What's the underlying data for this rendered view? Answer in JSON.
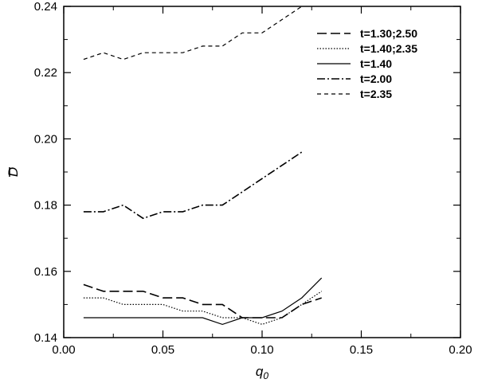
{
  "chart_data": {
    "type": "line",
    "title": "",
    "xlabel": "q",
    "xlabel_sub": "0",
    "ylabel": "D",
    "xlim": [
      0.0,
      0.2
    ],
    "ylim": [
      0.14,
      0.24
    ],
    "xticks": [
      0.0,
      0.05,
      0.1,
      0.15,
      0.2
    ],
    "xtick_labels": [
      "0.00",
      "0.05",
      "0.10",
      "0.15",
      "0.20"
    ],
    "yticks": [
      0.14,
      0.16,
      0.18,
      0.2,
      0.22,
      0.24
    ],
    "ytick_labels": [
      "0.14",
      "0.16",
      "0.18",
      "0.20",
      "0.22",
      "0.24"
    ],
    "grid": false,
    "legend_position": "top-right",
    "series": [
      {
        "name": "t=1.30;2.50",
        "dash": "long-dash",
        "x": [
          0.01,
          0.02,
          0.03,
          0.04,
          0.05,
          0.06,
          0.07,
          0.08,
          0.09,
          0.1,
          0.11,
          0.12,
          0.13
        ],
        "y": [
          0.156,
          0.154,
          0.154,
          0.154,
          0.152,
          0.152,
          0.15,
          0.15,
          0.146,
          0.146,
          0.146,
          0.15,
          0.152
        ]
      },
      {
        "name": "t=1.40;2.35",
        "dash": "dotted",
        "x": [
          0.01,
          0.02,
          0.03,
          0.04,
          0.05,
          0.06,
          0.07,
          0.08,
          0.09,
          0.1,
          0.11,
          0.12,
          0.13
        ],
        "y": [
          0.152,
          0.152,
          0.15,
          0.15,
          0.15,
          0.148,
          0.148,
          0.146,
          0.146,
          0.144,
          0.146,
          0.15,
          0.154
        ]
      },
      {
        "name": "t=1.40",
        "dash": "solid",
        "x": [
          0.01,
          0.02,
          0.03,
          0.04,
          0.05,
          0.06,
          0.07,
          0.08,
          0.09,
          0.1,
          0.11,
          0.12,
          0.13
        ],
        "y": [
          0.146,
          0.146,
          0.146,
          0.146,
          0.146,
          0.146,
          0.146,
          0.144,
          0.146,
          0.146,
          0.148,
          0.152,
          0.158
        ]
      },
      {
        "name": "t=2.00",
        "dash": "dash-dot",
        "x": [
          0.01,
          0.02,
          0.03,
          0.04,
          0.05,
          0.06,
          0.07,
          0.08,
          0.09,
          0.1,
          0.11,
          0.12
        ],
        "y": [
          0.178,
          0.178,
          0.18,
          0.176,
          0.178,
          0.178,
          0.18,
          0.18,
          0.184,
          0.188,
          0.192,
          0.196
        ]
      },
      {
        "name": "t=2.35",
        "dash": "short-dash",
        "x": [
          0.01,
          0.02,
          0.03,
          0.04,
          0.05,
          0.06,
          0.07,
          0.08,
          0.09,
          0.1,
          0.11,
          0.12
        ],
        "y": [
          0.224,
          0.226,
          0.224,
          0.226,
          0.226,
          0.226,
          0.228,
          0.228,
          0.232,
          0.232,
          0.236,
          0.24
        ]
      }
    ]
  }
}
